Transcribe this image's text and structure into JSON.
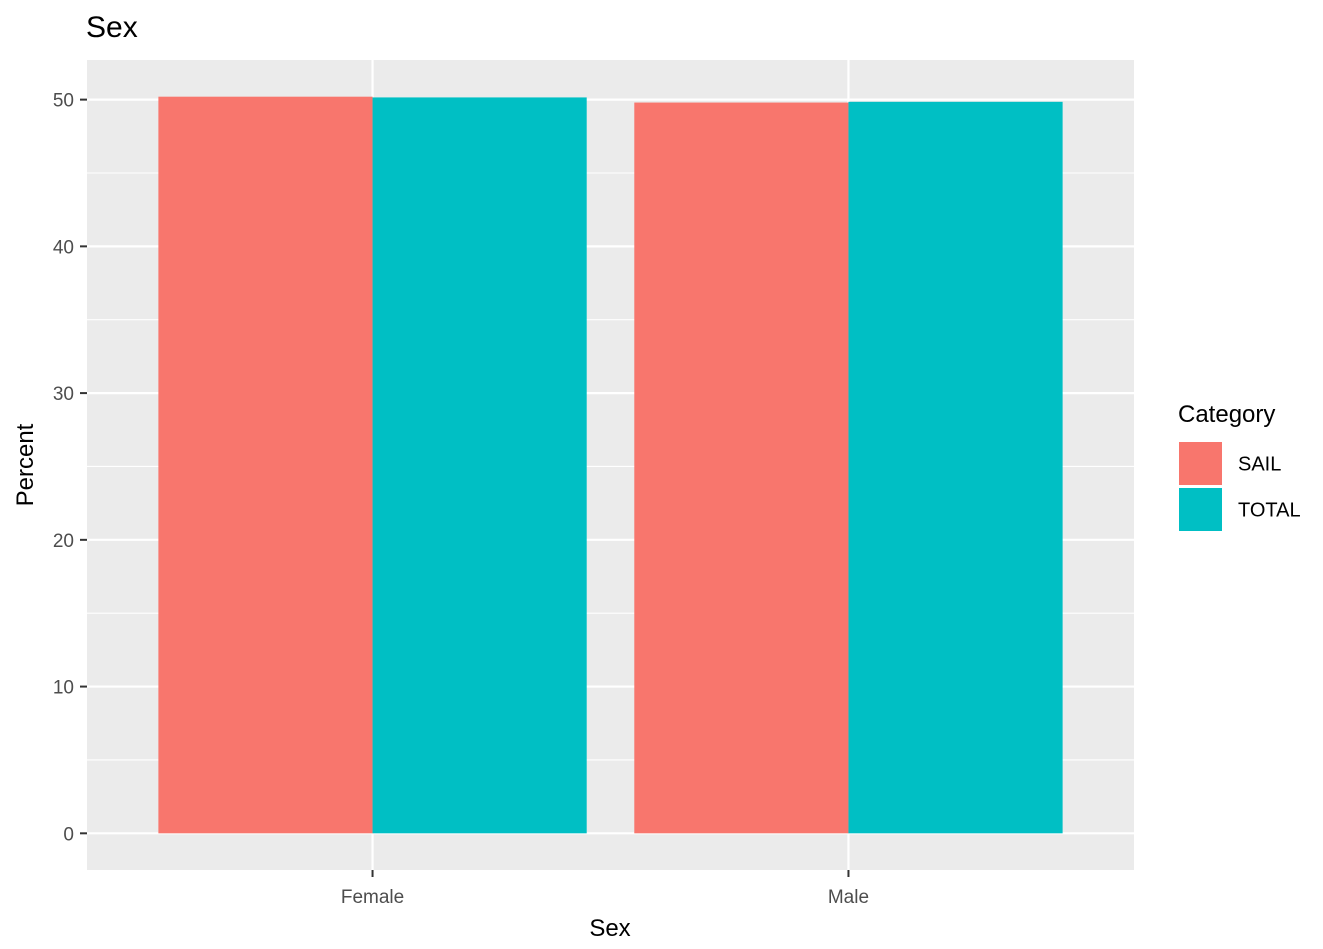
{
  "chart_data": {
    "type": "bar",
    "title": "Sex",
    "xlabel": "Sex",
    "ylabel": "Percent",
    "categories": [
      "Female",
      "Male"
    ],
    "series": [
      {
        "name": "SAIL",
        "values": [
          50.2,
          49.8
        ],
        "color": "#F8766D"
      },
      {
        "name": "TOTAL",
        "values": [
          50.15,
          49.85
        ],
        "color": "#00BFC4"
      }
    ],
    "ylim": [
      -2.5,
      52.7
    ],
    "yticks": [
      0,
      10,
      20,
      30,
      40,
      50
    ],
    "grid": true,
    "legend": {
      "title": "Category",
      "placement": "right"
    },
    "panel_background": "#EBEBEB",
    "grid_color": "#FFFFFF"
  }
}
